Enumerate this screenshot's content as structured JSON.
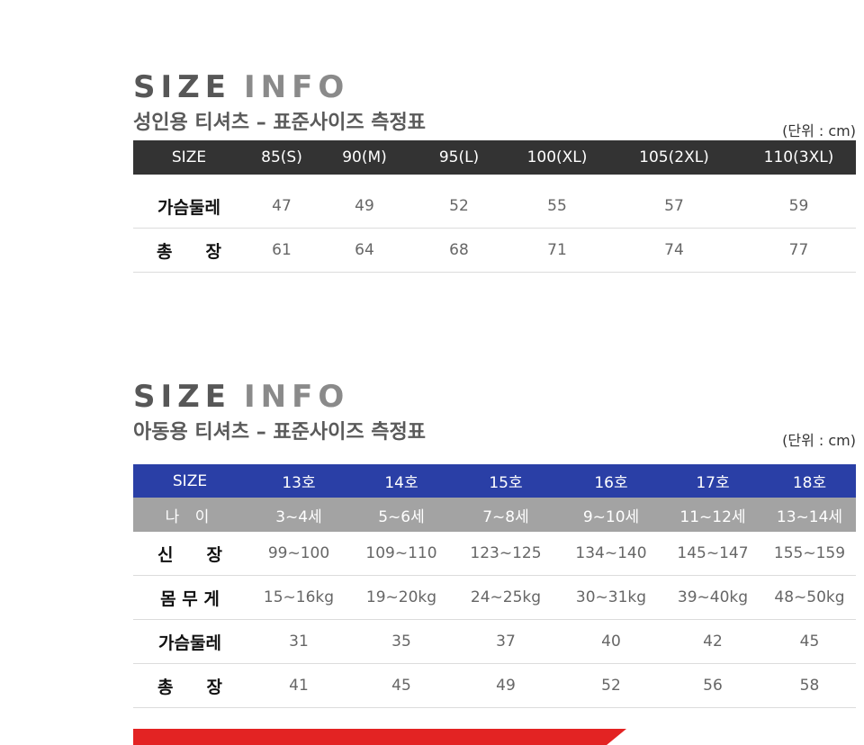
{
  "adult": {
    "title_word1": "SIZE",
    "title_word2": "INFO",
    "subtitle": "성인용 티셔츠 – 표준사이즈 측정표",
    "unit": "(단위 : cm)",
    "header": [
      "SIZE",
      "85(S)",
      "90(M)",
      "95(L)",
      "100(XL)",
      "105(2XL)",
      "110(3XL)"
    ],
    "rows": [
      {
        "label": "가슴둘레",
        "values": [
          "47",
          "49",
          "52",
          "55",
          "57",
          "59"
        ]
      },
      {
        "label_parts": [
          "총",
          "장"
        ],
        "values": [
          "61",
          "64",
          "68",
          "71",
          "74",
          "77"
        ]
      }
    ]
  },
  "kids": {
    "title_word1": "SIZE",
    "title_word2": "INFO",
    "subtitle": "아동용 티셔츠 – 표준사이즈 측정표",
    "unit": "(단위 : cm)",
    "header": [
      "SIZE",
      "13호",
      "14호",
      "15호",
      "16호",
      "17호",
      "18호"
    ],
    "age_row": [
      "나 이",
      "3~4세",
      "5~6세",
      "7~8세",
      "9~10세",
      "11~12세",
      "13~14세"
    ],
    "rows": [
      {
        "label_parts": [
          "신",
          "장"
        ],
        "values": [
          "99~100",
          "109~110",
          "123~125",
          "134~140",
          "145~147",
          "155~159"
        ]
      },
      {
        "label": "몸 무 게",
        "values": [
          "15~16kg",
          "19~20kg",
          "24~25kg",
          "30~31kg",
          "39~40kg",
          "48~50kg"
        ]
      },
      {
        "label": "가슴둘레",
        "values": [
          "31",
          "35",
          "37",
          "40",
          "42",
          "45"
        ]
      },
      {
        "label_parts": [
          "총",
          "장"
        ],
        "values": [
          "41",
          "45",
          "49",
          "52",
          "56",
          "58"
        ]
      }
    ]
  },
  "colors": {
    "adult_header_bg": "#333333",
    "kids_header_bg": "#2a3fa6",
    "kids_age_bg": "#a3a3a3",
    "banner": "#e32323"
  }
}
